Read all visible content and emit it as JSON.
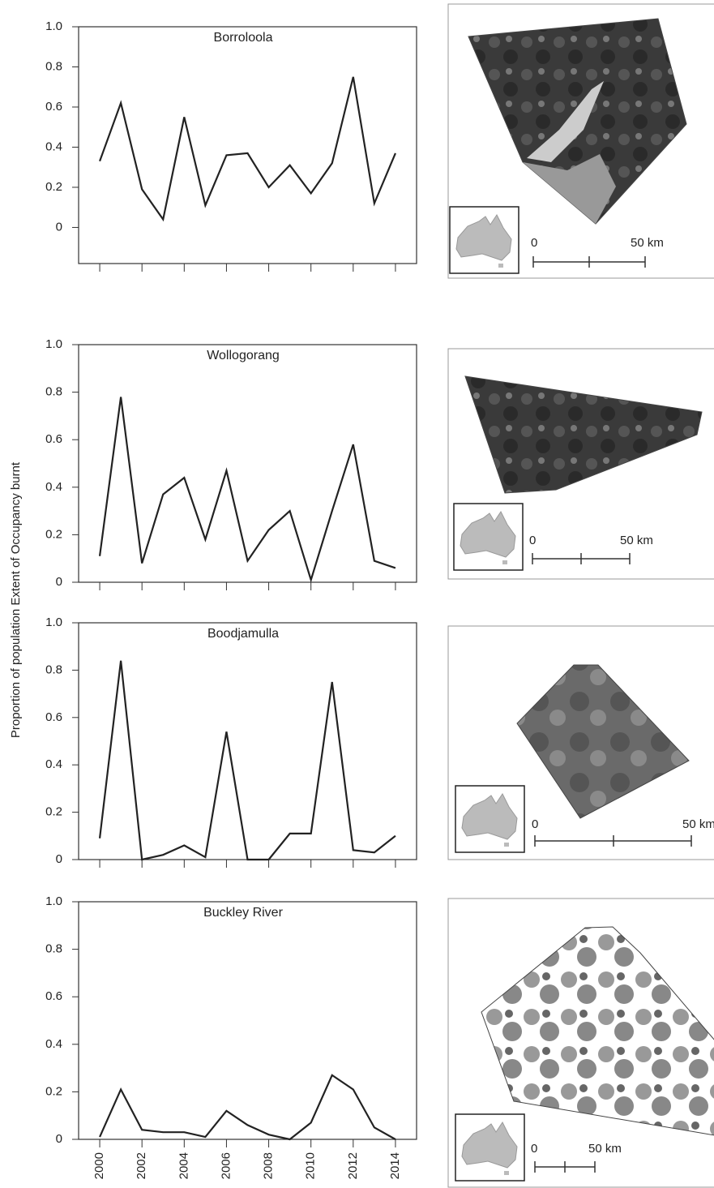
{
  "y_axis_label": "Proportion of population Extent of Occupancy burnt",
  "chart_data": [
    {
      "type": "line",
      "title": "Borroloola",
      "color": "#222222",
      "x": [
        2000,
        2001,
        2002,
        2003,
        2004,
        2005,
        2006,
        2007,
        2008,
        2009,
        2010,
        2011,
        2012,
        2013,
        2014
      ],
      "values": [
        0.33,
        0.62,
        0.19,
        0.04,
        0.55,
        0.11,
        0.36,
        0.37,
        0.2,
        0.31,
        0.17,
        0.32,
        0.75,
        0.12,
        0.37
      ],
      "xlim": [
        1999,
        2015
      ],
      "xticks": [
        2000,
        2002,
        2004,
        2006,
        2008,
        2010,
        2012,
        2014
      ],
      "xtick_labels": false,
      "ylim": [
        -0.18,
        1
      ],
      "yticks": [
        0,
        0.2,
        0.4,
        0.6,
        0.8,
        {
          "value": 1,
          "label": "1.0"
        }
      ]
    },
    {
      "type": "line",
      "title": "Wollogorang",
      "color": "#222222",
      "x": [
        2000,
        2001,
        2002,
        2003,
        2004,
        2005,
        2006,
        2007,
        2008,
        2009,
        2010,
        2011,
        2012,
        2013,
        2014
      ],
      "values": [
        0.11,
        0.78,
        0.08,
        0.37,
        0.44,
        0.18,
        0.47,
        0.09,
        0.22,
        0.3,
        0.01,
        0.3,
        0.58,
        0.09,
        0.06
      ],
      "xlim": [
        1999,
        2015
      ],
      "xticks": [
        2000,
        2002,
        2004,
        2006,
        2008,
        2010,
        2012,
        2014
      ],
      "xtick_labels": false,
      "ylim": [
        0,
        1
      ],
      "yticks": [
        0,
        0.2,
        0.4,
        0.6,
        0.8,
        {
          "value": 1,
          "label": "1.0"
        }
      ]
    },
    {
      "type": "line",
      "title": "Boodjamulla",
      "color": "#222222",
      "x": [
        2000,
        2001,
        2002,
        2003,
        2004,
        2005,
        2006,
        2007,
        2008,
        2009,
        2010,
        2011,
        2012,
        2013,
        2014
      ],
      "values": [
        0.09,
        0.84,
        0,
        0.02,
        0.06,
        0.01,
        0.54,
        0,
        0,
        0.11,
        0.11,
        0.75,
        0.04,
        0.03,
        0.1
      ],
      "xlim": [
        1999,
        2015
      ],
      "xticks": [
        2000,
        2002,
        2004,
        2006,
        2008,
        2010,
        2012,
        2014
      ],
      "xtick_labels": false,
      "ylim": [
        0,
        1
      ],
      "yticks": [
        0,
        0.2,
        0.4,
        0.6,
        0.8,
        {
          "value": 1,
          "label": "1.0"
        }
      ]
    },
    {
      "type": "line",
      "title": "Buckley River",
      "color": "#222222",
      "x": [
        2000,
        2001,
        2002,
        2003,
        2004,
        2005,
        2006,
        2007,
        2008,
        2009,
        2010,
        2011,
        2012,
        2013,
        2014
      ],
      "values": [
        0.01,
        0.21,
        0.04,
        0.03,
        0.03,
        0.01,
        0.12,
        0.06,
        0.02,
        0,
        0.07,
        0.27,
        0.21,
        0.05,
        0
      ],
      "xlim": [
        1999,
        2015
      ],
      "xticks": [
        2000,
        2002,
        2004,
        2006,
        2008,
        2010,
        2012,
        2014
      ],
      "xtick_labels": true,
      "ylim": [
        0,
        1
      ],
      "yticks": [
        0,
        0.2,
        0.4,
        0.6,
        0.8,
        {
          "value": 1,
          "label": "1.0"
        }
      ]
    }
  ],
  "maps": [
    {
      "scale_labels": [
        "0",
        "50 km"
      ]
    },
    {
      "scale_labels": [
        "0",
        "50 km"
      ]
    },
    {
      "scale_labels": [
        "0",
        "50 km"
      ]
    },
    {
      "scale_labels": [
        "0",
        "50 km"
      ]
    }
  ]
}
